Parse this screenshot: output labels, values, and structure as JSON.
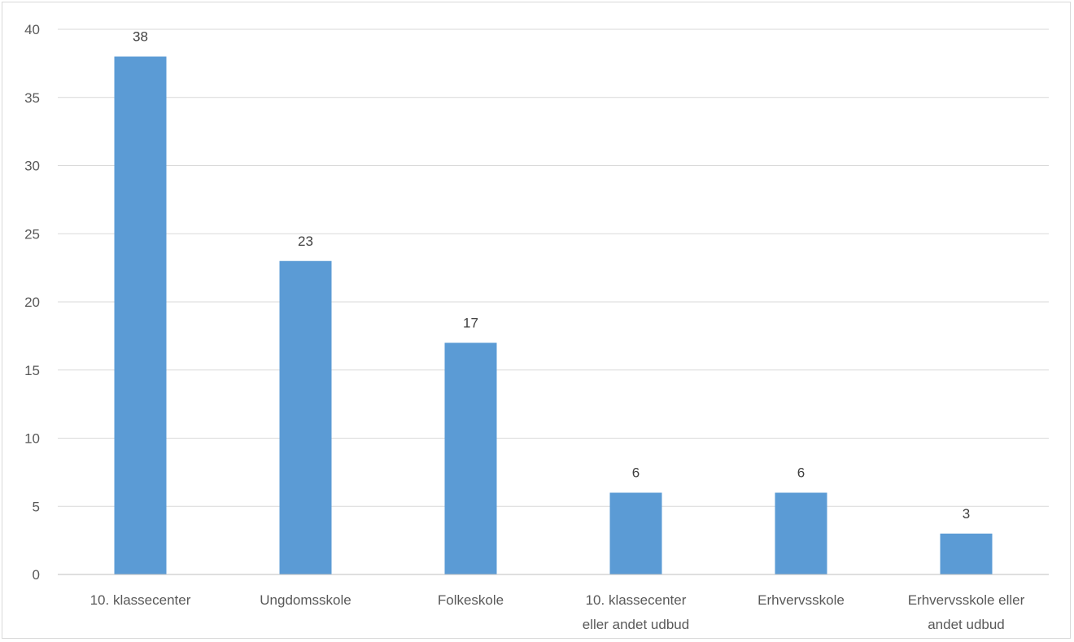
{
  "chart_data": {
    "type": "bar",
    "title": "",
    "xlabel": "",
    "ylabel": "",
    "categories": [
      [
        "10. klassecenter"
      ],
      [
        "Ungdomsskole"
      ],
      [
        "Folkeskole"
      ],
      [
        "10. klassecenter",
        "eller andet udbud"
      ],
      [
        "Erhvervsskole"
      ],
      [
        "Erhvervsskole eller",
        "andet udbud"
      ]
    ],
    "values": [
      38,
      23,
      17,
      6,
      6,
      3
    ],
    "data_labels": [
      "38",
      "23",
      "17",
      "6",
      "6",
      "3"
    ],
    "ylim": [
      0,
      40
    ],
    "y_ticks": [
      0,
      5,
      10,
      15,
      20,
      25,
      30,
      35,
      40
    ],
    "y_tick_labels": [
      "0",
      "5",
      "10",
      "15",
      "20",
      "25",
      "30",
      "35",
      "40"
    ],
    "grid": true,
    "legend": "none",
    "colors": {
      "bar": "#5b9bd5",
      "grid": "#d9d9d9",
      "axis": "#bfbfbf",
      "tick_text": "#595959",
      "data_label_text": "#404040"
    }
  }
}
